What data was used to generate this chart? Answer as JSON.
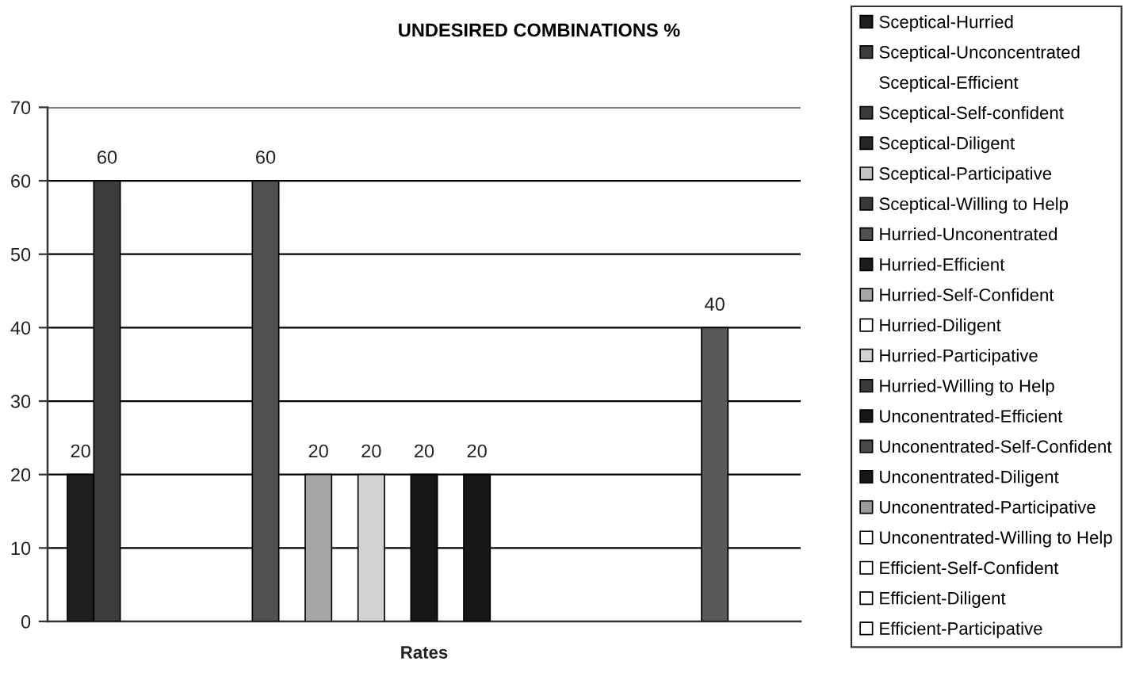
{
  "chart_data": {
    "type": "bar",
    "title": "UNDESIRED COMBINATIONS %",
    "categories": [
      "Rates"
    ],
    "ylim": [
      0,
      70
    ],
    "yticks": [
      0,
      10,
      20,
      30,
      40,
      50,
      60,
      70
    ],
    "grid": "y",
    "legend": "right",
    "data_labels": true,
    "series": [
      {
        "name": "Sceptical-Hurried",
        "color": "#1e1e1e",
        "values": [
          20
        ]
      },
      {
        "name": "Sceptical-Unconcentrated",
        "color": "#3c3c3c",
        "values": [
          60
        ]
      },
      {
        "name": "Sceptical-Efficient",
        "values": [
          null
        ]
      },
      {
        "name": "Sceptical-Self-confident",
        "color": "#3a3a3a",
        "values": [
          null
        ]
      },
      {
        "name": "Sceptical-Diligent",
        "color": "#262626",
        "values": [
          null
        ]
      },
      {
        "name": "Sceptical-Participative",
        "color": "#c4c4c4",
        "values": [
          null
        ]
      },
      {
        "name": "Sceptical-Willing to Help",
        "color": "#383838",
        "values": [
          null
        ]
      },
      {
        "name": "Hurried-Unconentrated",
        "color": "#505050",
        "values": [
          60
        ]
      },
      {
        "name": "Hurried-Efficient",
        "color": "#1c1c1c",
        "values": [
          null
        ]
      },
      {
        "name": "Hurried-Self-Confident",
        "color": "#a6a6a6",
        "values": [
          20
        ]
      },
      {
        "name": "Hurried-Diligent",
        "color": "#ffffff",
        "values": [
          null
        ]
      },
      {
        "name": "Hurried-Participative",
        "color": "#d2d2d2",
        "values": [
          20
        ]
      },
      {
        "name": "Hurried-Willing to Help",
        "color": "#3a3a3a",
        "values": [
          null
        ]
      },
      {
        "name": "Unconentrated-Efficient",
        "color": "#161616",
        "values": [
          20
        ]
      },
      {
        "name": "Unconentrated-Self-Confident",
        "color": "#4a4a4a",
        "values": [
          null
        ]
      },
      {
        "name": "Unconentrated-Diligent",
        "color": "#181818",
        "values": [
          20
        ]
      },
      {
        "name": "Unconentrated-Participative",
        "color": "#9a9a9a",
        "values": [
          null
        ]
      },
      {
        "name": "Unconentrated-Willing to Help",
        "color": "#ffffff",
        "values": [
          null
        ]
      },
      {
        "name": "Efficient-Self-Confident",
        "color": "#ffffff",
        "values": [
          null
        ]
      },
      {
        "name": "Efficient-Diligent",
        "color": "#ffffff",
        "values": [
          null
        ]
      },
      {
        "name": "Efficient-Participative",
        "color": "#ffffff",
        "values": [
          null
        ]
      },
      {
        "values": [
          null
        ]
      },
      {
        "values": [
          null
        ]
      },
      {
        "values": [
          null
        ]
      },
      {
        "color": "#595959",
        "values": [
          40
        ]
      },
      {
        "values": [
          null
        ]
      },
      {
        "values": [
          null
        ]
      }
    ]
  }
}
